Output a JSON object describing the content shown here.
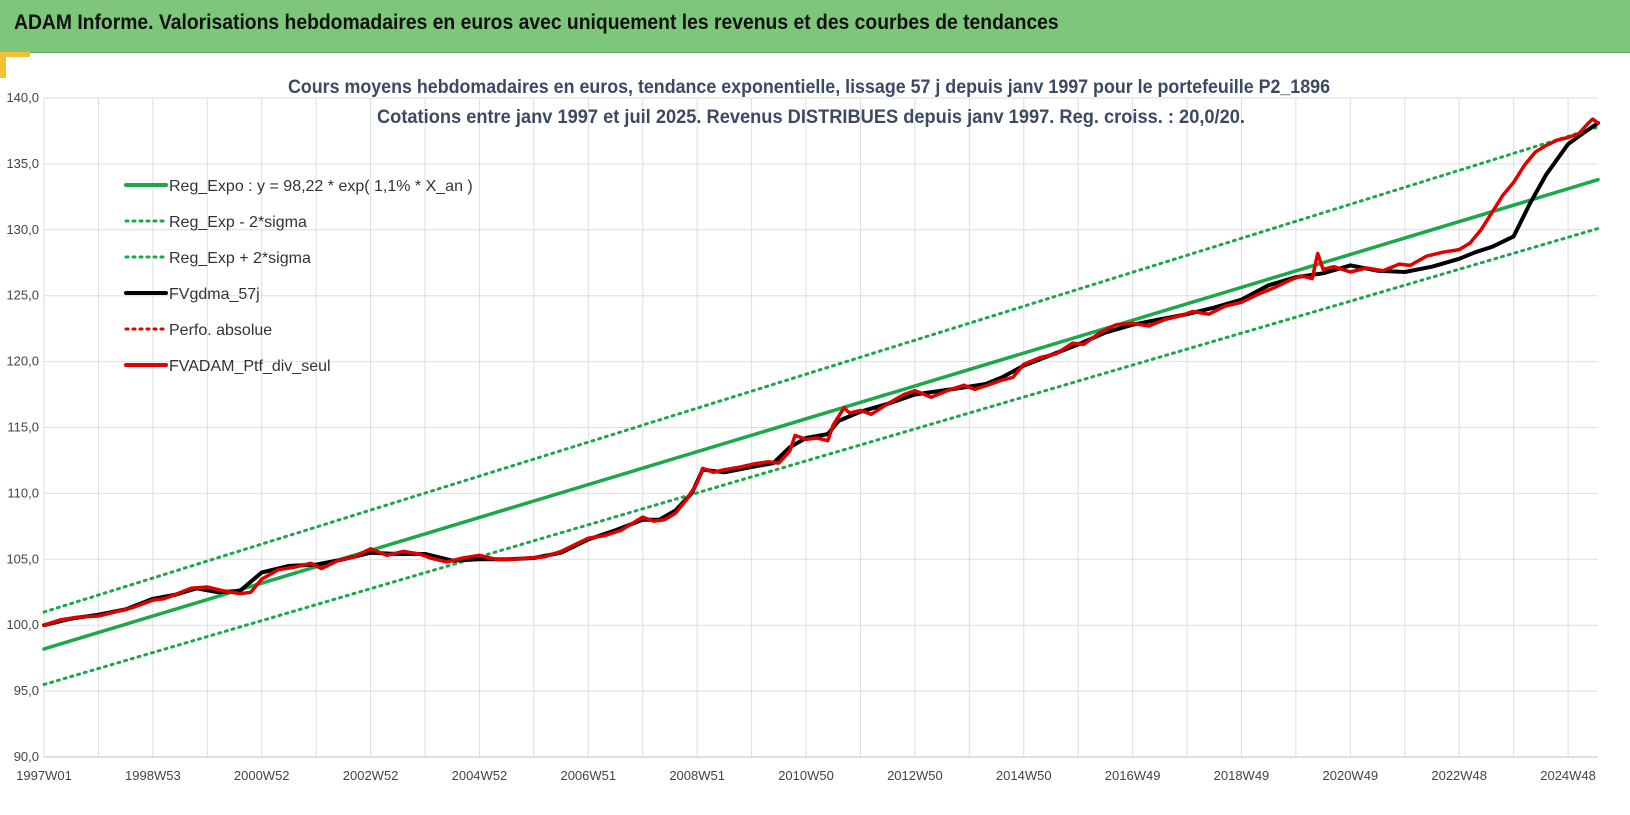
{
  "header": {
    "title": "ADAM Informe. Valorisations hebdomadaires en euros avec uniquement les revenus et des courbes de tendances"
  },
  "colors": {
    "header_bg": "#7dc67a",
    "trend": "#1aa84a",
    "smooth": "#000000",
    "perf": "#e00000",
    "accent": "#f2c230"
  },
  "chart_data": {
    "type": "line",
    "title_lines": [
      "Cours moyens hebdomadaires  en euros, tendance exponentielle, lissage 57 j depuis janv 1997 pour le portefeuille P2_1896",
      "Cotations  entre janv 1997 et juil 2025. Revenus DISTRIBUES depuis janv 1997. Reg. croiss. : 20,0/20."
    ],
    "ylim": [
      90,
      140
    ],
    "y_ticks": [
      "90,0",
      "95,0",
      "100,0",
      "105,0",
      "110,0",
      "115,0",
      "120,0",
      "125,0",
      "130,0",
      "135,0",
      "140,0"
    ],
    "xlim": [
      1997.0,
      2025.55
    ],
    "x_ticks": [
      {
        "label": "1997W01",
        "x": 1997.0
      },
      {
        "label": "1998W53",
        "x": 1999.0
      },
      {
        "label": "2000W52",
        "x": 2001.0
      },
      {
        "label": "2002W52",
        "x": 2003.0
      },
      {
        "label": "2004W52",
        "x": 2005.0
      },
      {
        "label": "2006W51",
        "x": 2007.0
      },
      {
        "label": "2008W51",
        "x": 2009.0
      },
      {
        "label": "2010W50",
        "x": 2011.0
      },
      {
        "label": "2012W50",
        "x": 2013.0
      },
      {
        "label": "2014W50",
        "x": 2015.0
      },
      {
        "label": "2016W49",
        "x": 2017.0
      },
      {
        "label": "2018W49",
        "x": 2019.0
      },
      {
        "label": "2020W49",
        "x": 2021.0
      },
      {
        "label": "2022W48",
        "x": 2023.0
      },
      {
        "label": "2024W48",
        "x": 2025.0
      }
    ],
    "grid": true,
    "legend_position": "top-left",
    "series": [
      {
        "name": "Reg_Expo : y = 98,22 * exp( 1,1% *  X_an )",
        "style": "solid",
        "color": "#1aa84a",
        "x": [
          1997.0,
          2025.55
        ],
        "y": [
          98.2,
          133.8
        ]
      },
      {
        "name": "Reg_Exp - 2*sigma",
        "style": "dotted",
        "color": "#1aa84a",
        "x": [
          1997.0,
          2025.55
        ],
        "y": [
          95.5,
          130.1
        ]
      },
      {
        "name": "Reg_Exp + 2*sigma",
        "style": "dotted",
        "color": "#1aa84a",
        "x": [
          1997.0,
          2025.55
        ],
        "y": [
          101.0,
          137.8
        ]
      },
      {
        "name": "FVgdma_57j",
        "style": "solid",
        "color": "#000000",
        "x": [
          1997.0,
          1997.5,
          1998.0,
          1998.5,
          1999.0,
          1999.4,
          1999.8,
          2000.2,
          2000.6,
          2001.0,
          2001.5,
          2002.0,
          2002.5,
          2003.0,
          2003.5,
          2004.0,
          2004.5,
          2005.0,
          2005.5,
          2006.0,
          2006.5,
          2007.0,
          2007.5,
          2008.0,
          2008.3,
          2008.6,
          2008.9,
          2009.1,
          2009.5,
          2010.0,
          2010.4,
          2010.7,
          2011.0,
          2011.4,
          2011.6,
          2012.0,
          2012.5,
          2013.0,
          2013.5,
          2014.0,
          2014.3,
          2014.6,
          2015.0,
          2015.5,
          2016.0,
          2016.5,
          2017.0,
          2017.5,
          2018.0,
          2018.5,
          2019.0,
          2019.5,
          2020.0,
          2020.5,
          2021.0,
          2021.5,
          2022.0,
          2022.5,
          2023.0,
          2023.3,
          2023.6,
          2024.0,
          2024.3,
          2024.6,
          2025.0,
          2025.3,
          2025.55
        ],
        "y": [
          100.0,
          100.5,
          100.8,
          101.2,
          102.0,
          102.3,
          102.8,
          102.5,
          102.6,
          104.0,
          104.5,
          104.6,
          105.0,
          105.5,
          105.4,
          105.4,
          104.9,
          105.0,
          105.0,
          105.1,
          105.5,
          106.5,
          107.2,
          108.0,
          108.0,
          108.7,
          110.0,
          111.8,
          111.6,
          112.0,
          112.3,
          113.5,
          114.2,
          114.5,
          115.5,
          116.2,
          116.8,
          117.5,
          117.8,
          118.1,
          118.3,
          118.8,
          119.7,
          120.5,
          121.3,
          122.2,
          122.8,
          123.2,
          123.6,
          124.1,
          124.7,
          125.8,
          126.4,
          126.7,
          127.3,
          126.9,
          126.8,
          127.2,
          127.8,
          128.3,
          128.7,
          129.5,
          132.0,
          134.2,
          136.5,
          137.4,
          138.1
        ]
      },
      {
        "name": "Perfo. absolue",
        "style": "dotted",
        "color": "#e00000",
        "x": [
          1997.0,
          1997.5,
          1998.0,
          1998.5,
          1999.0,
          1999.4,
          1999.8,
          2000.2,
          2000.6,
          2001.0,
          2001.5,
          2002.0,
          2002.5,
          2003.0,
          2003.5,
          2004.0,
          2004.5,
          2005.0,
          2005.5,
          2006.0,
          2006.5,
          2007.0,
          2007.5,
          2008.0,
          2008.3,
          2008.6,
          2008.9,
          2009.1,
          2009.5,
          2010.0,
          2010.4,
          2010.7,
          2011.0,
          2011.4,
          2011.6,
          2012.0,
          2012.5,
          2013.0,
          2013.5,
          2014.0,
          2014.3,
          2014.6,
          2015.0,
          2015.5,
          2016.0,
          2016.5,
          2017.0,
          2017.5,
          2018.0,
          2018.5,
          2019.0,
          2019.5,
          2020.0,
          2020.5,
          2021.0,
          2021.5,
          2022.0,
          2022.5,
          2023.0,
          2023.3,
          2023.6,
          2024.0,
          2024.3,
          2024.6,
          2025.0,
          2025.3,
          2025.55
        ],
        "y": [
          100.0,
          100.5,
          100.8,
          101.2,
          102.0,
          102.3,
          102.8,
          102.5,
          102.6,
          104.0,
          104.5,
          104.6,
          105.0,
          105.5,
          105.4,
          105.4,
          104.9,
          105.0,
          105.0,
          105.1,
          105.5,
          106.5,
          107.2,
          108.0,
          108.0,
          108.7,
          110.0,
          111.8,
          111.6,
          112.0,
          112.3,
          113.5,
          114.2,
          114.5,
          115.5,
          116.2,
          116.8,
          117.5,
          117.8,
          118.1,
          118.3,
          118.8,
          119.7,
          120.5,
          121.3,
          122.2,
          122.8,
          123.2,
          123.6,
          124.1,
          124.7,
          125.8,
          126.4,
          126.7,
          127.3,
          126.9,
          126.8,
          127.2,
          127.8,
          128.3,
          128.7,
          129.5,
          132.0,
          134.2,
          136.5,
          137.4,
          138.1
        ]
      },
      {
        "name": "FVADAM_Ptf_div_seul",
        "style": "solid",
        "color": "#e00000",
        "x": [
          1997.0,
          1997.3,
          1997.6,
          1998.0,
          1998.3,
          1998.6,
          1999.0,
          1999.2,
          1999.4,
          1999.7,
          2000.0,
          2000.3,
          2000.6,
          2000.8,
          2001.0,
          2001.3,
          2001.6,
          2001.9,
          2002.1,
          2002.4,
          2002.7,
          2003.0,
          2003.3,
          2003.6,
          2003.9,
          2004.1,
          2004.4,
          2004.7,
          2005.0,
          2005.3,
          2005.6,
          2005.9,
          2006.2,
          2006.5,
          2006.8,
          2007.0,
          2007.3,
          2007.6,
          2007.8,
          2008.0,
          2008.2,
          2008.4,
          2008.6,
          2008.8,
          2009.0,
          2009.1,
          2009.3,
          2009.5,
          2009.8,
          2010.0,
          2010.3,
          2010.5,
          2010.7,
          2010.8,
          2011.0,
          2011.2,
          2011.4,
          2011.5,
          2011.7,
          2011.8,
          2012.0,
          2012.2,
          2012.5,
          2012.8,
          2013.0,
          2013.3,
          2013.6,
          2013.9,
          2014.1,
          2014.4,
          2014.6,
          2014.8,
          2015.0,
          2015.3,
          2015.6,
          2015.9,
          2016.1,
          2016.4,
          2016.7,
          2017.0,
          2017.3,
          2017.6,
          2017.9,
          2018.1,
          2018.4,
          2018.7,
          2019.0,
          2019.3,
          2019.6,
          2019.9,
          2020.1,
          2020.3,
          2020.4,
          2020.5,
          2020.7,
          2021.0,
          2021.3,
          2021.6,
          2021.9,
          2022.1,
          2022.4,
          2022.7,
          2023.0,
          2023.2,
          2023.4,
          2023.6,
          2023.8,
          2024.0,
          2024.2,
          2024.4,
          2024.6,
          2024.8,
          2025.0,
          2025.2,
          2025.35,
          2025.45,
          2025.55
        ],
        "y": [
          100.0,
          100.4,
          100.6,
          100.7,
          101.0,
          101.3,
          101.9,
          102.0,
          102.3,
          102.8,
          102.9,
          102.6,
          102.4,
          102.5,
          103.5,
          104.2,
          104.4,
          104.7,
          104.3,
          104.9,
          105.2,
          105.8,
          105.3,
          105.6,
          105.4,
          105.1,
          104.8,
          105.1,
          105.3,
          105.0,
          105.0,
          105.1,
          105.2,
          105.6,
          106.2,
          106.6,
          106.8,
          107.2,
          107.7,
          108.2,
          107.9,
          108.0,
          108.5,
          109.5,
          110.8,
          111.9,
          111.6,
          111.8,
          112.0,
          112.2,
          112.4,
          112.3,
          113.2,
          114.4,
          114.1,
          114.2,
          114.0,
          115.2,
          116.5,
          116.1,
          116.3,
          116.0,
          116.8,
          117.5,
          117.8,
          117.3,
          117.8,
          118.2,
          117.9,
          118.3,
          118.6,
          118.8,
          119.8,
          120.3,
          120.6,
          121.4,
          121.3,
          122.2,
          122.8,
          122.9,
          122.7,
          123.2,
          123.5,
          123.8,
          123.6,
          124.2,
          124.5,
          125.1,
          125.6,
          126.2,
          126.5,
          126.3,
          128.2,
          127.0,
          127.2,
          126.8,
          127.1,
          126.9,
          127.4,
          127.3,
          128.0,
          128.3,
          128.5,
          129.0,
          130.0,
          131.3,
          132.6,
          133.6,
          134.9,
          135.9,
          136.4,
          136.8,
          137.0,
          137.3,
          138.0,
          138.4,
          138.1
        ]
      }
    ]
  }
}
